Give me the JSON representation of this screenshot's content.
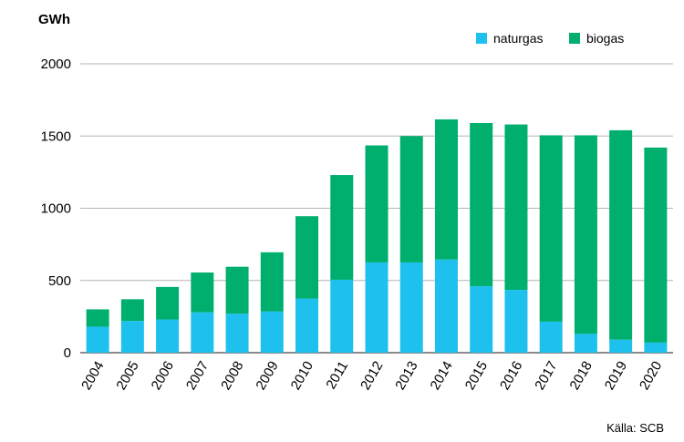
{
  "chart_data": {
    "type": "bar",
    "stacked": true,
    "unit_label": "GWh",
    "title": "",
    "xlabel": "",
    "ylabel": "GWh",
    "ylim": [
      0,
      2000
    ],
    "yticks": [
      0,
      500,
      1000,
      1500,
      2000
    ],
    "grid": true,
    "legend_position": "top-right",
    "categories": [
      "2004",
      "2005",
      "2006",
      "2007",
      "2008",
      "2009",
      "2010",
      "2011",
      "2012",
      "2013",
      "2014",
      "2015",
      "2016",
      "2017",
      "2018",
      "2019",
      "2020"
    ],
    "series": [
      {
        "name": "naturgas",
        "color": "#1ec0ee",
        "values": [
          180,
          220,
          230,
          280,
          270,
          285,
          375,
          505,
          625,
          625,
          645,
          460,
          435,
          215,
          130,
          90,
          70
        ]
      },
      {
        "name": "biogas",
        "color": "#00ae6e",
        "values": [
          120,
          150,
          225,
          275,
          325,
          410,
          570,
          725,
          810,
          875,
          970,
          1130,
          1145,
          1290,
          1375,
          1450,
          1350
        ]
      }
    ],
    "source": "Källa: SCB"
  }
}
